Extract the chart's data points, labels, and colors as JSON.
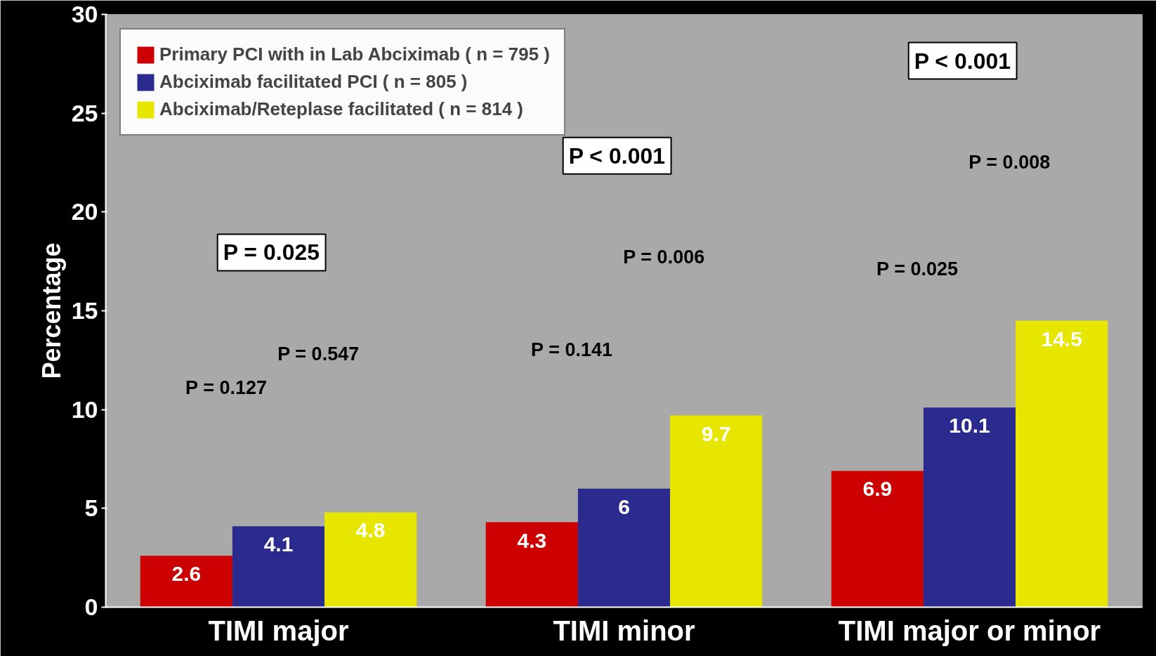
{
  "chart_data": {
    "type": "bar",
    "ylabel": "Percentage",
    "categories": [
      "TIMI major",
      "TIMI minor",
      "TIMI major or minor"
    ],
    "series": [
      {
        "name": "Primary PCI with in Lab Abciximab ( n = 795 )",
        "color": "#cc0000",
        "values": [
          2.6,
          4.3,
          6.9
        ]
      },
      {
        "name": "Abciximab facilitated PCI ( n = 805 )",
        "color": "#2b2b8f",
        "values": [
          4.1,
          6,
          10.1
        ]
      },
      {
        "name": "Abciximab/Reteplase facilitated ( n = 814 )",
        "color": "#e6e600",
        "values": [
          4.8,
          9.7,
          14.5
        ]
      }
    ],
    "ylim": [
      0,
      30
    ],
    "yticks": [
      0,
      5,
      10,
      15,
      20,
      25,
      30
    ],
    "data_labels": true,
    "legend": "top left",
    "grid": false,
    "annotations": [
      "P = 0.127",
      "P = 0.547",
      "P = 0.025",
      "P = 0.141",
      "P = 0.006",
      "P < 0.001",
      "P = 0.025",
      "P = 0.008",
      "P < 0.001"
    ]
  }
}
